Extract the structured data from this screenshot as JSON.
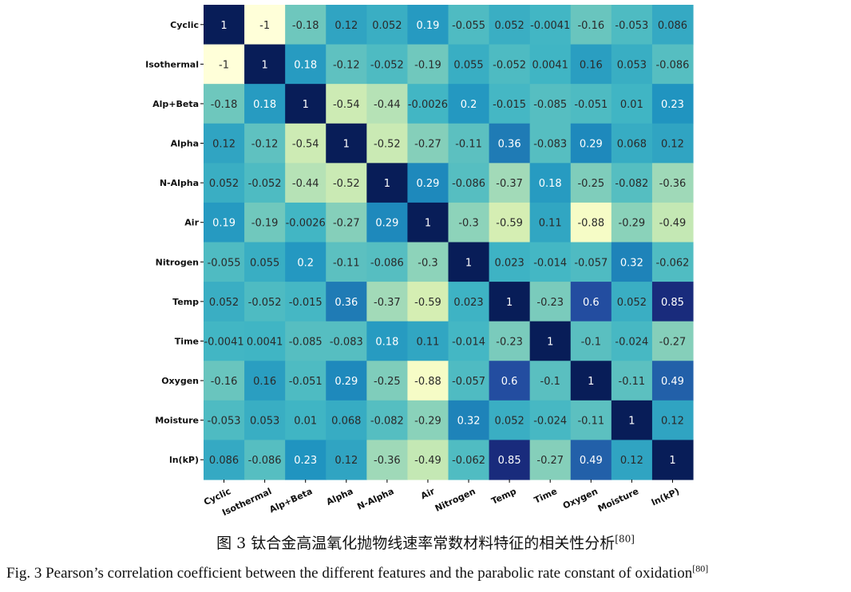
{
  "chart_data": {
    "type": "heatmap",
    "variables": [
      "Cyclic",
      "Isothermal",
      "Alp+Beta",
      "Alpha",
      "N-Alpha",
      "Air",
      "Nitrogen",
      "Temp",
      "Time",
      "Oxygen",
      "Moisture",
      "ln(kP)"
    ],
    "values": [
      [
        1,
        -1,
        -0.18,
        0.12,
        0.052,
        0.19,
        -0.055,
        0.052,
        -0.0041,
        -0.16,
        -0.053,
        0.086
      ],
      [
        -1,
        1,
        0.18,
        -0.12,
        -0.052,
        -0.19,
        0.055,
        -0.052,
        0.0041,
        0.16,
        0.053,
        -0.086
      ],
      [
        -0.18,
        0.18,
        1,
        -0.54,
        -0.44,
        -0.0026,
        0.2,
        -0.015,
        -0.085,
        -0.051,
        0.01,
        0.23
      ],
      [
        0.12,
        -0.12,
        -0.54,
        1,
        -0.52,
        -0.27,
        -0.11,
        0.36,
        -0.083,
        0.29,
        0.068,
        0.12
      ],
      [
        0.052,
        -0.052,
        -0.44,
        -0.52,
        1,
        0.29,
        -0.086,
        -0.37,
        0.18,
        -0.25,
        -0.082,
        -0.36
      ],
      [
        0.19,
        -0.19,
        -0.0026,
        -0.27,
        0.29,
        1,
        -0.3,
        -0.59,
        0.11,
        -0.88,
        -0.29,
        -0.49
      ],
      [
        -0.055,
        0.055,
        0.2,
        -0.11,
        -0.086,
        -0.3,
        1,
        0.023,
        -0.014,
        -0.057,
        0.32,
        -0.062
      ],
      [
        0.052,
        -0.052,
        -0.015,
        0.36,
        -0.37,
        -0.59,
        0.023,
        1,
        -0.23,
        0.6,
        0.052,
        0.85
      ],
      [
        -0.0041,
        0.0041,
        -0.085,
        -0.083,
        0.18,
        0.11,
        -0.014,
        -0.23,
        1,
        -0.1,
        -0.024,
        -0.27
      ],
      [
        -0.16,
        0.16,
        -0.051,
        0.29,
        -0.25,
        -0.88,
        -0.057,
        0.6,
        -0.1,
        1,
        -0.11,
        0.49
      ],
      [
        -0.053,
        0.053,
        0.01,
        0.068,
        -0.082,
        -0.29,
        0.32,
        0.052,
        -0.024,
        -0.11,
        1,
        0.12
      ],
      [
        0.086,
        -0.086,
        0.23,
        0.12,
        -0.36,
        -0.49,
        -0.062,
        0.85,
        -0.27,
        0.49,
        0.12,
        1
      ]
    ],
    "colormap": "YlGnBu",
    "value_range": [
      -1,
      1
    ]
  },
  "caption": {
    "cn_text": "图 3  钛合金高温氧化抛物线速率常数材料特征的相关性分析",
    "cn_ref": "[80]",
    "en_text": "Fig. 3 Pearson’s correlation coefficient between the different features and the parabolic rate constant of oxidation",
    "en_ref": "[80]"
  }
}
